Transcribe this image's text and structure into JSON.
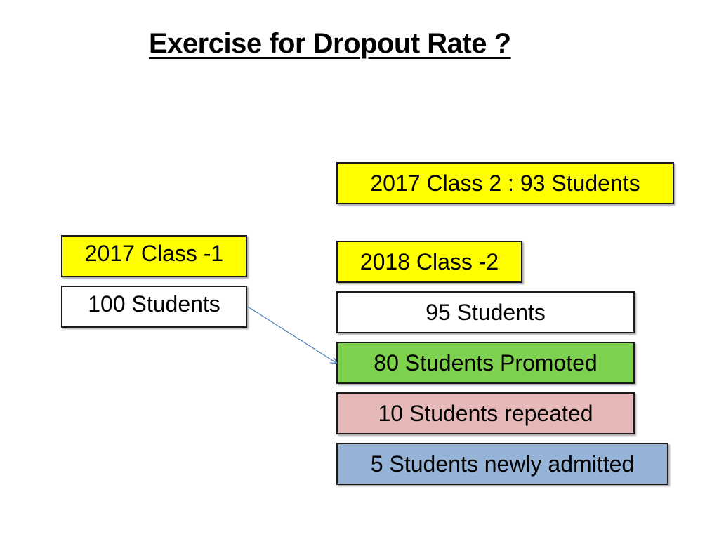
{
  "title": "Exercise for Dropout Rate ?",
  "boxes": {
    "class2_2017": "2017 Class 2 : 93 Students",
    "class1_2017": "2017 Class -1",
    "class2_2018": "2018 Class -2",
    "students_100": "100 Students",
    "students_95": "95 Students",
    "promoted": "80 Students Promoted",
    "repeated": "10 Students repeated",
    "admitted": "5 Students newly admitted"
  },
  "colors": {
    "yellow": "#ffff00",
    "green": "#7dd14c",
    "pink": "#e6b8b8",
    "blue": "#95b3d7",
    "arrow": "#4a7ebb"
  }
}
